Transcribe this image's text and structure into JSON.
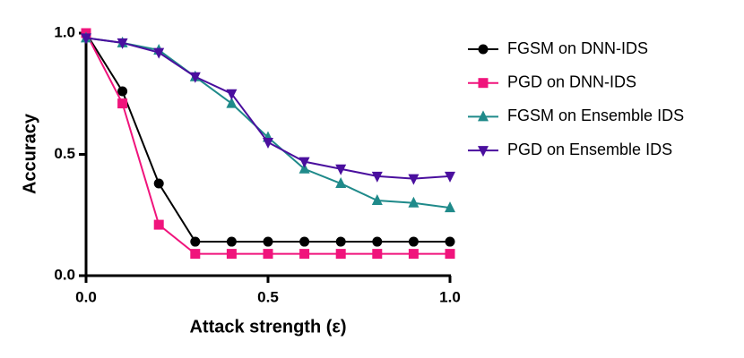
{
  "chart_data": {
    "type": "line",
    "x_label": "Attack strength (ε)",
    "y_label": "Accuracy",
    "x": [
      0.0,
      0.1,
      0.2,
      0.3,
      0.4,
      0.5,
      0.6,
      0.7,
      0.8,
      0.9,
      1.0
    ],
    "series": [
      {
        "name": "FGSM on DNN-IDS",
        "color": "#000000",
        "marker": "circle",
        "values": [
          1.0,
          0.76,
          0.38,
          0.14,
          0.14,
          0.14,
          0.14,
          0.14,
          0.14,
          0.14,
          0.14
        ]
      },
      {
        "name": "PGD on DNN-IDS",
        "color": "#f0147c",
        "marker": "square",
        "values": [
          1.0,
          0.71,
          0.21,
          0.09,
          0.09,
          0.09,
          0.09,
          0.09,
          0.09,
          0.09,
          0.09
        ]
      },
      {
        "name": "FGSM on Ensemble IDS",
        "color": "#1f8a8a",
        "marker": "triangle-up",
        "values": [
          0.98,
          0.96,
          0.93,
          0.82,
          0.71,
          0.57,
          0.44,
          0.38,
          0.31,
          0.3,
          0.28
        ]
      },
      {
        "name": "PGD on Ensemble IDS",
        "color": "#4a0f9e",
        "marker": "triangle-down",
        "values": [
          0.98,
          0.96,
          0.92,
          0.82,
          0.75,
          0.55,
          0.47,
          0.44,
          0.41,
          0.4,
          0.41
        ]
      }
    ],
    "xlim": [
      0.0,
      1.0
    ],
    "ylim": [
      0.0,
      1.0
    ],
    "xticks": [
      {
        "value": 0.0,
        "label": "0.0"
      },
      0.5,
      {
        "value": 1.0,
        "label": "1.0"
      }
    ],
    "yticks": [
      {
        "value": 0.0,
        "label": "0.0"
      },
      0.5,
      {
        "value": 1.0,
        "label": "1.0"
      }
    ],
    "legend": "right"
  }
}
